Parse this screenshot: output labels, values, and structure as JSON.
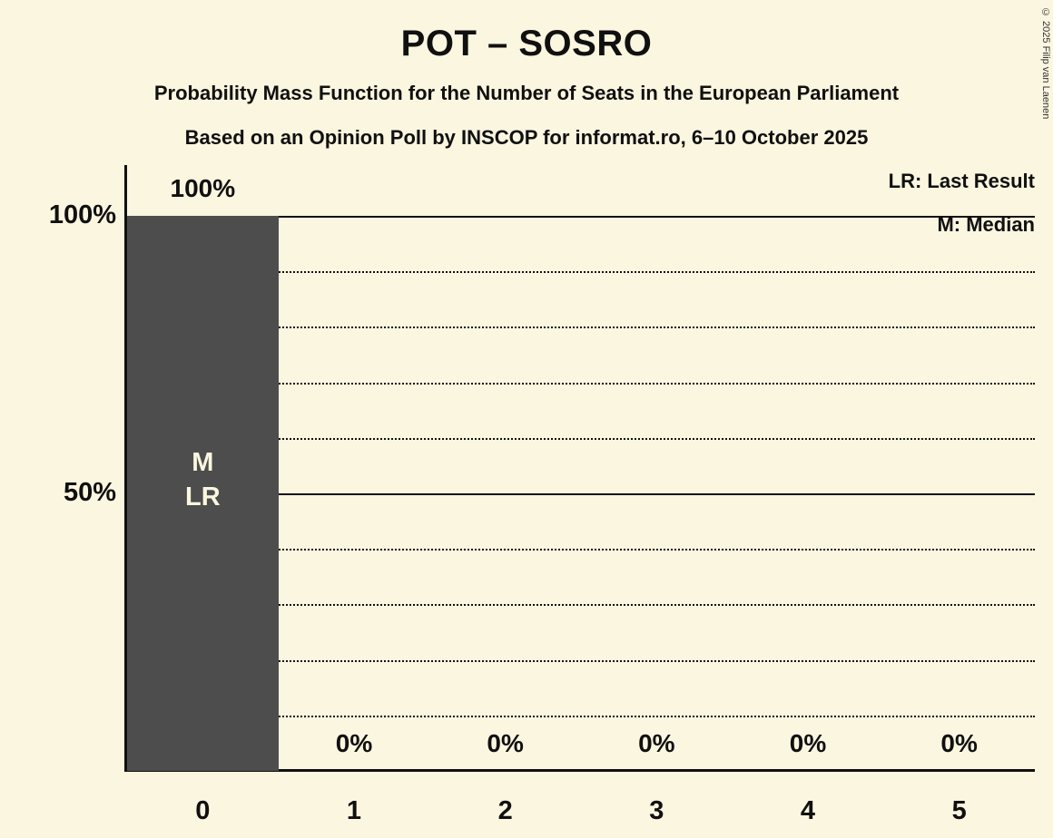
{
  "title": "POT – SOSRO",
  "subtitles": {
    "line1": "Probability Mass Function for the Number of Seats in the European Parliament",
    "line2": "Based on an Opinion Poll by INSCOP for informat.ro, 6–10 October 2025"
  },
  "legend": {
    "lr": "LR: Last Result",
    "m": "M: Median"
  },
  "copyright": "© 2025 Filip van Laenen",
  "colors": {
    "background": "#FBF6DF",
    "bar": "#4D4D4D",
    "text": "#101010",
    "bar_label": "#FBF6DF"
  },
  "chart_data": {
    "type": "bar",
    "title": "POT – SOSRO",
    "xlabel": "",
    "ylabel": "",
    "categories": [
      "0",
      "1",
      "2",
      "3",
      "4",
      "5"
    ],
    "values": [
      100,
      0,
      0,
      0,
      0,
      0
    ],
    "value_labels": [
      "100%",
      "0%",
      "0%",
      "0%",
      "0%",
      "0%"
    ],
    "ylim": [
      0,
      100
    ],
    "yticks": [
      {
        "value": 100,
        "label": "100%"
      },
      {
        "value": 50,
        "label": "50%"
      }
    ],
    "solid_gridlines": [
      100,
      50
    ],
    "dotted_gridlines": [
      90,
      80,
      70,
      60,
      40,
      30,
      20,
      10
    ],
    "grid": true,
    "legend_position": "top-right",
    "bar_annotations": [
      {
        "category_index": 0,
        "lines": [
          "M",
          "LR"
        ]
      }
    ]
  }
}
